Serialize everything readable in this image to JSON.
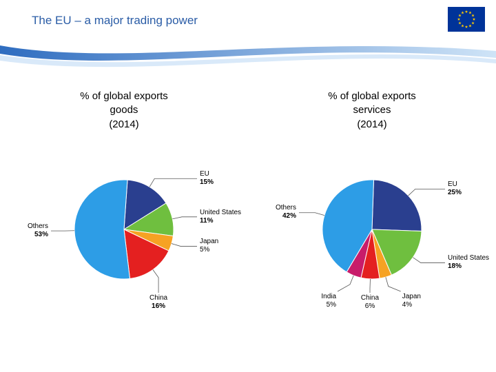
{
  "header": {
    "title": "The EU – a major trading power",
    "title_color": "#2a5ca6",
    "title_fontsize": 17,
    "band_gradient": [
      "#2f6dc0",
      "#cfe4f7"
    ],
    "flag_bg": "#003399",
    "flag_star_color": "#ffcc00"
  },
  "charts": [
    {
      "title": "% of global exports\ngoods\n(2014)",
      "title_fontsize": 15,
      "type": "pie",
      "radius": 72,
      "start_angle_deg": -86,
      "background_color": "#ffffff",
      "slices": [
        {
          "name": "EU",
          "value": 15,
          "color": "#2a3f8f",
          "label_side": "right",
          "bold": true
        },
        {
          "name": "United States",
          "value": 11,
          "color": "#6fbf3f",
          "label_side": "right",
          "bold": true
        },
        {
          "name": "Japan",
          "value": 5,
          "color": "#f6a223",
          "label_side": "right",
          "bold": false
        },
        {
          "name": "China",
          "value": 16,
          "color": "#e42020",
          "label_side": "bottom",
          "bold": true
        },
        {
          "name": "Others",
          "value": 53,
          "color": "#2d9de6",
          "label_side": "left",
          "bold": true
        }
      ]
    },
    {
      "title": "% of global exports\nservices\n(2014)",
      "title_fontsize": 15,
      "type": "pie",
      "radius": 72,
      "start_angle_deg": -88,
      "background_color": "#ffffff",
      "slices": [
        {
          "name": "EU",
          "value": 25,
          "color": "#2a3f8f",
          "label_side": "right",
          "bold": true
        },
        {
          "name": "United States",
          "value": 18,
          "color": "#6fbf3f",
          "label_side": "right",
          "bold": true
        },
        {
          "name": "Japan",
          "value": 4,
          "color": "#f6a223",
          "label_side": "bottomright",
          "bold": false
        },
        {
          "name": "China",
          "value": 6,
          "color": "#e42020",
          "label_side": "bottom",
          "bold": false
        },
        {
          "name": "India",
          "value": 5,
          "color": "#c81c6a",
          "label_side": "bottomleft",
          "bold": false
        },
        {
          "name": "Others",
          "value": 42,
          "color": "#2d9de6",
          "label_side": "left",
          "bold": true
        }
      ]
    }
  ]
}
